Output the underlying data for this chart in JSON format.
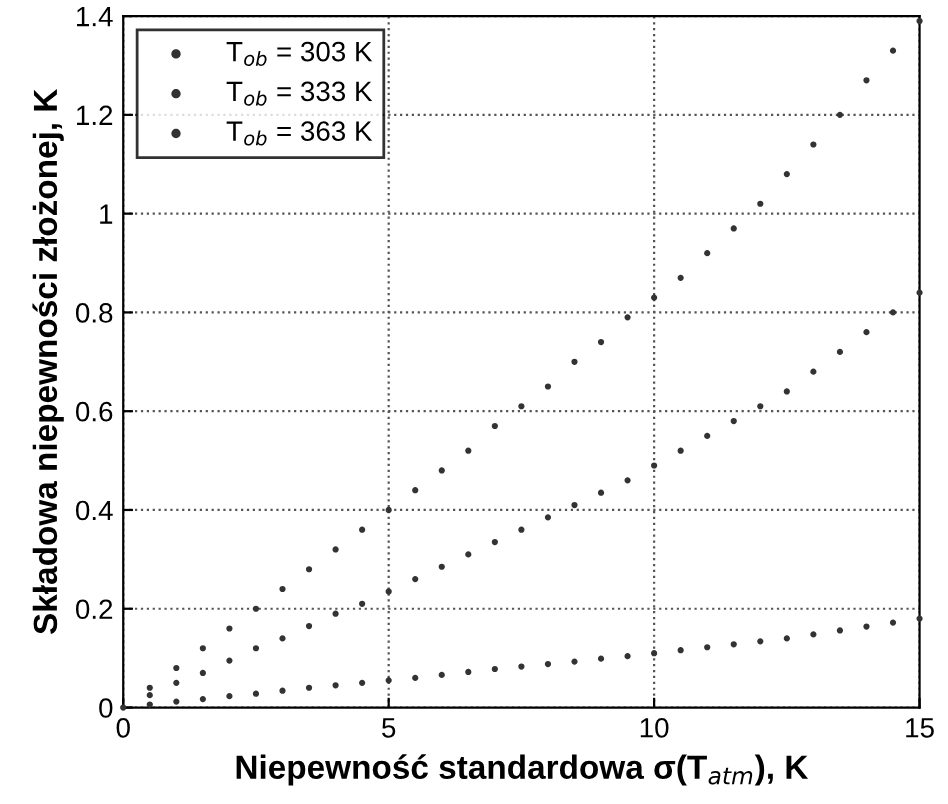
{
  "chart_data": {
    "type": "scatter",
    "xlabel": "Niepewność standardowa σ(T$_{atm}$), K",
    "ylabel": "Składowa niepewności złożonej, K",
    "x": [
      0,
      0.5,
      1,
      1.5,
      2,
      2.5,
      3,
      3.5,
      4,
      4.5,
      5,
      5.5,
      6,
      6.5,
      7,
      7.5,
      8,
      8.5,
      9,
      9.5,
      10,
      10.5,
      11,
      11.5,
      12,
      12.5,
      13,
      13.5,
      14,
      14.5,
      15
    ],
    "series": [
      {
        "name": "T$_{ob}$ = 303 K",
        "color": "#333333",
        "values": [
          0,
          0.04,
          0.08,
          0.12,
          0.16,
          0.2,
          0.24,
          0.28,
          0.32,
          0.36,
          0.4,
          0.44,
          0.48,
          0.52,
          0.57,
          0.61,
          0.65,
          0.7,
          0.74,
          0.79,
          0.83,
          0.87,
          0.92,
          0.97,
          1.02,
          1.08,
          1.14,
          1.2,
          1.27,
          1.33,
          1.39
        ]
      },
      {
        "name": "T$_{ob}$ = 333 K",
        "color": "#333333",
        "values": [
          null,
          0.025,
          0.05,
          0.07,
          0.095,
          0.12,
          0.14,
          0.165,
          0.19,
          0.21,
          0.235,
          0.26,
          0.285,
          0.31,
          0.335,
          0.36,
          0.385,
          0.41,
          0.435,
          0.46,
          0.49,
          0.52,
          0.55,
          0.58,
          0.61,
          0.64,
          0.68,
          0.72,
          0.76,
          0.8,
          0.84
        ]
      },
      {
        "name": "T$_{ob}$ = 363 K",
        "color": "#333333",
        "values": [
          null,
          0.006,
          0.012,
          0.017,
          0.023,
          0.028,
          0.034,
          0.04,
          0.045,
          0.05,
          0.055,
          0.06,
          0.066,
          0.072,
          0.078,
          0.083,
          0.088,
          0.093,
          0.099,
          0.104,
          0.11,
          0.116,
          0.122,
          0.128,
          0.134,
          0.14,
          0.148,
          0.156,
          0.164,
          0.172,
          0.18
        ]
      }
    ],
    "xlim": [
      0,
      15
    ],
    "ylim": [
      0,
      1.4
    ],
    "xticks": [
      0,
      5,
      10,
      15
    ],
    "yticks": [
      0,
      0.2,
      0.4,
      0.6,
      0.8,
      1,
      1.2,
      1.4
    ],
    "grid": true,
    "legend": "top left",
    "marker": "circle"
  }
}
